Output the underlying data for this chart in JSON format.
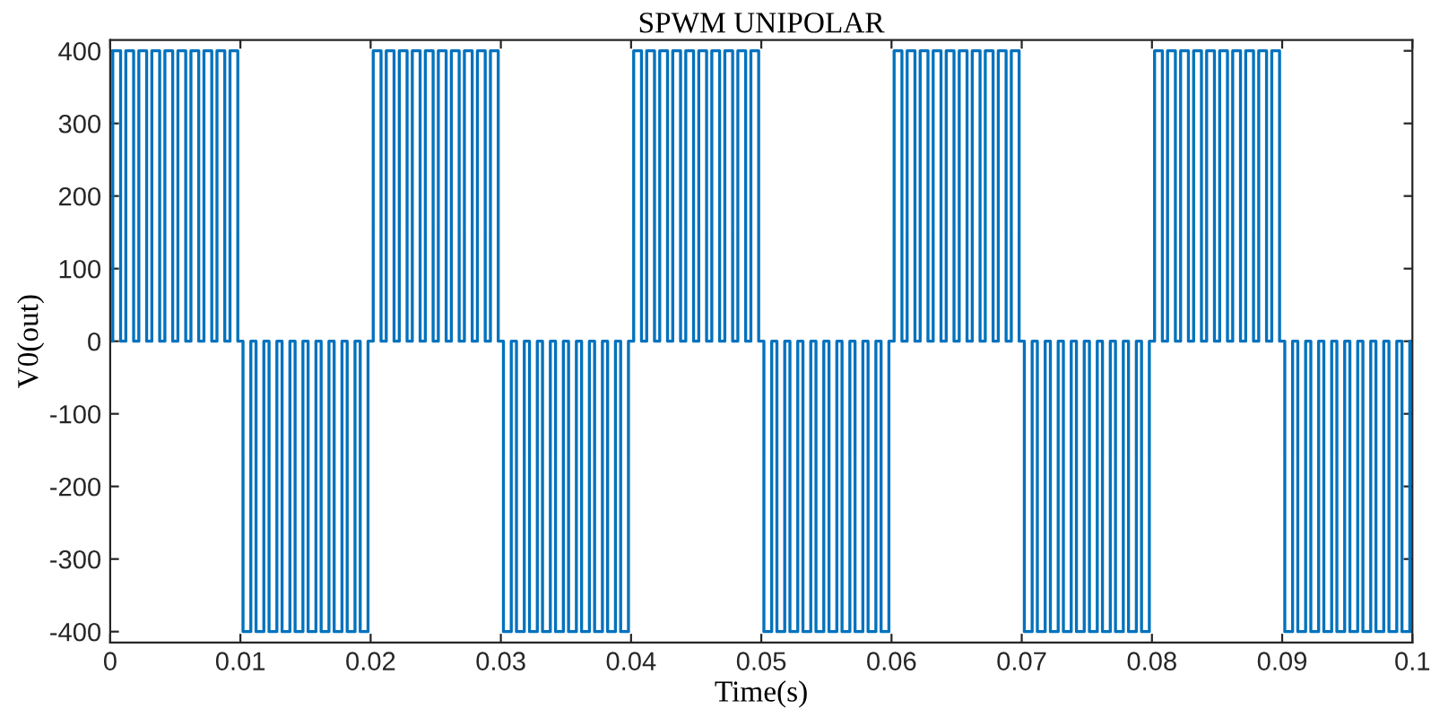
{
  "chart_data": {
    "type": "step",
    "title": "SPWM UNIPOLAR",
    "xlabel": "Time(s)",
    "ylabel": "V0(out)",
    "xlim": [
      0,
      0.1
    ],
    "xticks": [
      0,
      0.01,
      0.02,
      0.03,
      0.04,
      0.05,
      0.06,
      0.07,
      0.08,
      0.09,
      0.1
    ],
    "ylim": [
      -415,
      415
    ],
    "yticks": [
      -400,
      -300,
      -200,
      -100,
      0,
      100,
      200,
      300,
      400
    ],
    "grid": false,
    "legend": false,
    "line_style": "solid",
    "marker": "none",
    "series": [
      {
        "color": "#0072bd",
        "x": [
          0,
          0.0002,
          0.0008,
          0.0012,
          0.0018,
          0.0022,
          0.0028,
          0.0032,
          0.0038,
          0.0042,
          0.0048,
          0.0052,
          0.0058,
          0.0062,
          0.0068,
          0.0072,
          0.0078,
          0.0082,
          0.0088,
          0.0092,
          0.0098,
          0.0102,
          0.0108,
          0.0112,
          0.0118,
          0.0122,
          0.0128,
          0.0132,
          0.0138,
          0.0142,
          0.0148,
          0.0152,
          0.0158,
          0.0162,
          0.0168,
          0.0172,
          0.0178,
          0.0182,
          0.0188,
          0.0192,
          0.0198,
          0.0202,
          0.0208,
          0.0212,
          0.0218,
          0.0222,
          0.0228,
          0.0232,
          0.0238,
          0.0242,
          0.0248,
          0.0252,
          0.0258,
          0.0262,
          0.0268,
          0.0272,
          0.0278,
          0.0282,
          0.0288,
          0.0292,
          0.0298,
          0.0302,
          0.0308,
          0.0312,
          0.0318,
          0.0322,
          0.0328,
          0.0332,
          0.0338,
          0.0342,
          0.0348,
          0.0352,
          0.0358,
          0.0362,
          0.0368,
          0.0372,
          0.0378,
          0.0382,
          0.0388,
          0.0392,
          0.0398,
          0.0402,
          0.0408,
          0.0412,
          0.0418,
          0.0422,
          0.0428,
          0.0432,
          0.0438,
          0.0442,
          0.0448,
          0.0452,
          0.0458,
          0.0462,
          0.0468,
          0.0472,
          0.0478,
          0.0482,
          0.0488,
          0.0492,
          0.0498,
          0.0502,
          0.0508,
          0.0512,
          0.0518,
          0.0522,
          0.0528,
          0.0532,
          0.0538,
          0.0542,
          0.0548,
          0.0552,
          0.0558,
          0.0562,
          0.0568,
          0.0572,
          0.0578,
          0.0582,
          0.0588,
          0.0592,
          0.0598,
          0.0602,
          0.0608,
          0.0612,
          0.0618,
          0.0622,
          0.0628,
          0.0632,
          0.0638,
          0.0642,
          0.0648,
          0.0652,
          0.0658,
          0.0662,
          0.0668,
          0.0672,
          0.0678,
          0.0682,
          0.0688,
          0.0692,
          0.0698,
          0.0702,
          0.0708,
          0.0712,
          0.0718,
          0.0722,
          0.0728,
          0.0732,
          0.0738,
          0.0742,
          0.0748,
          0.0752,
          0.0758,
          0.0762,
          0.0768,
          0.0772,
          0.0778,
          0.0782,
          0.0788,
          0.0792,
          0.0798,
          0.0802,
          0.0808,
          0.0812,
          0.0818,
          0.0822,
          0.0828,
          0.0832,
          0.0838,
          0.0842,
          0.0848,
          0.0852,
          0.0858,
          0.0862,
          0.0868,
          0.0872,
          0.0878,
          0.0882,
          0.0888,
          0.0892,
          0.0898,
          0.0902,
          0.0908,
          0.0912,
          0.0918,
          0.0922,
          0.0928,
          0.0932,
          0.0938,
          0.0942,
          0.0948,
          0.0952,
          0.0958,
          0.0962,
          0.0968,
          0.0972,
          0.0978,
          0.0982,
          0.0988,
          0.0992,
          0.0998,
          0.1
        ],
        "values": [
          0,
          400,
          0,
          400,
          0,
          400,
          0,
          400,
          0,
          400,
          0,
          400,
          0,
          400,
          0,
          400,
          0,
          400,
          0,
          400,
          0,
          -400,
          0,
          -400,
          0,
          -400,
          0,
          -400,
          0,
          -400,
          0,
          -400,
          0,
          -400,
          0,
          -400,
          0,
          -400,
          0,
          -400,
          0,
          400,
          0,
          400,
          0,
          400,
          0,
          400,
          0,
          400,
          0,
          400,
          0,
          400,
          0,
          400,
          0,
          400,
          0,
          400,
          0,
          -400,
          0,
          -400,
          0,
          -400,
          0,
          -400,
          0,
          -400,
          0,
          -400,
          0,
          -400,
          0,
          -400,
          0,
          -400,
          0,
          -400,
          0,
          400,
          0,
          400,
          0,
          400,
          0,
          400,
          0,
          400,
          0,
          400,
          0,
          400,
          0,
          400,
          0,
          400,
          0,
          400,
          0,
          -400,
          0,
          -400,
          0,
          -400,
          0,
          -400,
          0,
          -400,
          0,
          -400,
          0,
          -400,
          0,
          -400,
          0,
          -400,
          0,
          -400,
          0,
          400,
          0,
          400,
          0,
          400,
          0,
          400,
          0,
          400,
          0,
          400,
          0,
          400,
          0,
          400,
          0,
          400,
          0,
          400,
          0,
          -400,
          0,
          -400,
          0,
          -400,
          0,
          -400,
          0,
          -400,
          0,
          -400,
          0,
          -400,
          0,
          -400,
          0,
          -400,
          0,
          -400,
          0,
          400,
          0,
          400,
          0,
          400,
          0,
          400,
          0,
          400,
          0,
          400,
          0,
          400,
          0,
          400,
          0,
          400,
          0,
          400,
          0,
          -400,
          0,
          -400,
          0,
          -400,
          0,
          -400,
          0,
          -400,
          0,
          -400,
          0,
          -400,
          0,
          -400,
          0,
          -400,
          0,
          -400,
          0,
          0
        ]
      }
    ]
  }
}
